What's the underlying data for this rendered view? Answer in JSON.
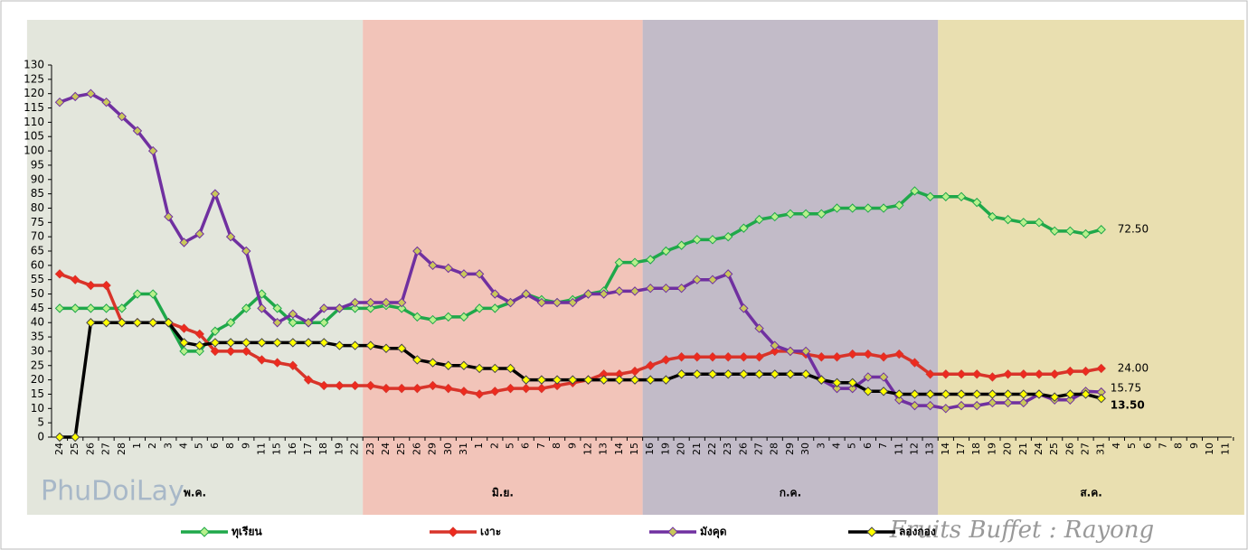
{
  "chart_data": {
    "type": "line",
    "categories": [
      "24",
      "25",
      "26",
      "27",
      "28",
      "1",
      "2",
      "3",
      "4",
      "5",
      "6",
      "8",
      "9",
      "11",
      "15",
      "16",
      "17",
      "18",
      "19",
      "22",
      "23",
      "24",
      "25",
      "26",
      "29",
      "30",
      "31",
      "1",
      "2",
      "5",
      "6",
      "7",
      "8",
      "9",
      "12",
      "13",
      "14",
      "15",
      "16",
      "19",
      "20",
      "21",
      "22",
      "23",
      "26",
      "27",
      "28",
      "29",
      "30",
      "3",
      "4",
      "5",
      "6",
      "7",
      "11",
      "12",
      "13",
      "14",
      "17",
      "18",
      "19",
      "20",
      "21",
      "24",
      "25",
      "26",
      "27",
      "31",
      "4",
      "5",
      "6",
      "7",
      "8",
      "9",
      "10",
      "11"
    ],
    "month_labels": [
      "พ.ค.",
      "มิ.ย.",
      "ก.ค.",
      "ส.ค."
    ],
    "series": [
      {
        "name": "ทุเรียน",
        "color": "#1fa84a",
        "marker": "#b8f08c",
        "values": [
          45,
          45,
          45,
          45,
          45,
          50,
          50,
          40,
          30,
          30,
          37,
          40,
          45,
          50,
          45,
          40,
          40,
          40,
          45,
          45,
          45,
          46,
          45,
          42,
          41,
          42,
          42,
          45,
          45,
          47,
          50,
          48,
          47,
          48,
          50,
          51,
          61,
          61,
          62,
          65,
          67,
          69,
          69,
          70,
          73,
          76,
          77,
          78,
          78,
          78,
          80,
          80,
          80,
          80,
          81,
          86,
          84,
          84,
          84,
          82,
          77,
          76,
          75,
          75,
          72,
          72,
          71,
          72.5,
          null,
          null,
          null,
          null,
          null,
          null,
          null,
          null
        ],
        "value_labels": {
          "67": "72.50"
        }
      },
      {
        "name": "เงาะ",
        "color": "#d8342a",
        "marker": "#ee2a1e",
        "values": [
          57,
          55,
          53,
          53,
          40,
          40,
          40,
          40,
          38,
          36,
          30,
          30,
          30,
          27,
          26,
          25,
          20,
          18,
          18,
          18,
          18,
          17,
          17,
          17,
          18,
          17,
          16,
          15,
          16,
          17,
          17,
          17,
          18,
          19,
          20,
          22,
          22,
          23,
          25,
          27,
          28,
          28,
          28,
          28,
          28,
          28,
          30,
          30,
          29,
          28,
          28,
          29,
          29,
          28,
          29,
          26,
          22,
          22,
          22,
          22,
          21,
          22,
          22,
          22,
          22,
          23,
          23,
          24,
          null,
          null,
          null,
          null,
          null,
          null,
          null,
          null
        ],
        "value_labels": {
          "67": "24.00"
        }
      },
      {
        "name": "มังคุด",
        "color": "#7030a0",
        "marker": "#c9c85a",
        "values": [
          117,
          119,
          120,
          117,
          112,
          107,
          100,
          77,
          68,
          71,
          85,
          70,
          65,
          45,
          40,
          43,
          40,
          45,
          45,
          47,
          47,
          47,
          47,
          65,
          60,
          59,
          57,
          57,
          50,
          47,
          50,
          47,
          47,
          47,
          50,
          50,
          51,
          51,
          52,
          52,
          52,
          55,
          55,
          57,
          45,
          38,
          32,
          30,
          30,
          20,
          17,
          17,
          21,
          21,
          13,
          11,
          11,
          10,
          11,
          11,
          12,
          12,
          12,
          15,
          13,
          13,
          16,
          15.75,
          null,
          null,
          null,
          null,
          null,
          null,
          null,
          null
        ],
        "value_labels": {
          "67": "15.75"
        }
      },
      {
        "name": "ลองกอง",
        "color": "#000000",
        "marker": "#ffff00",
        "values": [
          0,
          0,
          40,
          40,
          40,
          40,
          40,
          40,
          33,
          32,
          33,
          33,
          33,
          33,
          33,
          33,
          33,
          33,
          32,
          32,
          32,
          31,
          31,
          27,
          26,
          25,
          25,
          24,
          24,
          24,
          20,
          20,
          20,
          20,
          20,
          20,
          20,
          20,
          20,
          20,
          22,
          22,
          22,
          22,
          22,
          22,
          22,
          22,
          22,
          20,
          19,
          19,
          16,
          16,
          15,
          15,
          15,
          15,
          15,
          15,
          15,
          15,
          15,
          15,
          14,
          15,
          15,
          13.5,
          null,
          null,
          null,
          null,
          null,
          null,
          null,
          null
        ],
        "value_labels": {
          "67": "13.50"
        }
      }
    ],
    "ylim": [
      0,
      130
    ],
    "yticks": [
      0,
      5,
      10,
      15,
      20,
      25,
      30,
      35,
      40,
      45,
      50,
      55,
      60,
      65,
      70,
      75,
      80,
      85,
      90,
      95,
      100,
      105,
      110,
      115,
      120,
      125,
      130
    ],
    "legend": "bottom",
    "logo": "PhuDoiLay",
    "watermark": "Fruits Buffet : Rayong"
  }
}
